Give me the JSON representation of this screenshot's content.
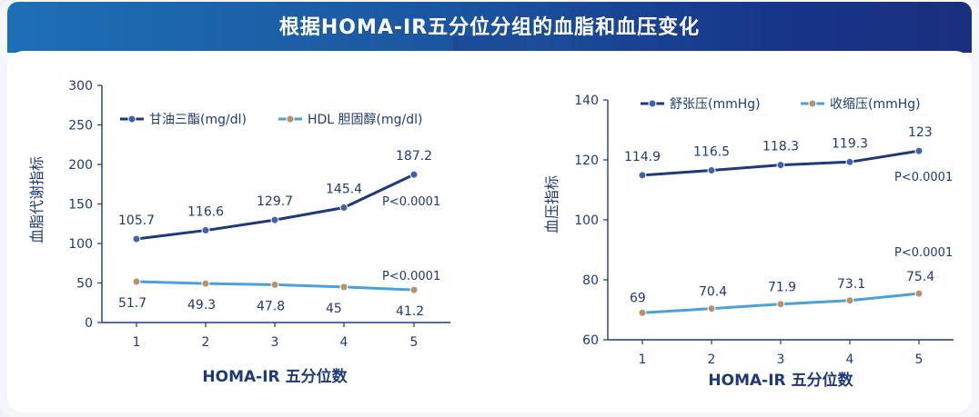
{
  "header": {
    "title": "根据HOMA-IR五分位分组的血脂和血压变化"
  },
  "chart_data": [
    {
      "type": "line",
      "xlabel": "HOMA-IR  五分位数",
      "ylabel": "血脂代谢指标",
      "x": [
        1,
        2,
        3,
        4,
        5
      ],
      "ylim": [
        0,
        300
      ],
      "yticks": [
        0,
        50,
        100,
        150,
        200,
        250,
        300
      ],
      "legend_position": "top-left",
      "series": [
        {
          "name": "甘油三酯(mg/dl)",
          "values": [
            105.7,
            116.6,
            129.7,
            145.4,
            187.2
          ],
          "labels": [
            "105.7",
            "116.6",
            "129.7",
            "145.4",
            "187.2"
          ],
          "color": "#1f3a7a",
          "marker_color": "#3f63a8"
        },
        {
          "name": "HDL 胆固醇(mg/dl)",
          "values": [
            51.7,
            49.3,
            47.8,
            45,
            41.2
          ],
          "labels": [
            "51.7",
            "49.3",
            "47.8",
            "45",
            "41.2"
          ],
          "color": "#4aa3d6",
          "marker_color": "#b8906a"
        }
      ],
      "annotations": [
        "P<0.0001",
        "P<0.0001"
      ]
    },
    {
      "type": "line",
      "xlabel": "HOMA-IR  五分位数",
      "ylabel": "血压指标",
      "x": [
        1,
        2,
        3,
        4,
        5
      ],
      "ylim": [
        60,
        140
      ],
      "yticks": [
        60,
        80,
        100,
        120,
        140
      ],
      "legend_position": "top-left",
      "series": [
        {
          "name": "舒张压(mmHg)",
          "values": [
            114.9,
            116.5,
            118.3,
            119.3,
            123
          ],
          "labels": [
            "114.9",
            "116.5",
            "118.3",
            "119.3",
            "123"
          ],
          "color": "#1f3a7a",
          "marker_color": "#3f63a8"
        },
        {
          "name": "收缩压(mmHg)",
          "values": [
            69,
            70.4,
            71.9,
            73.1,
            75.4
          ],
          "labels": [
            "69",
            "70.4",
            "71.9",
            "73.1",
            "75.4"
          ],
          "color": "#4aa3d6",
          "marker_color": "#b8906a"
        }
      ],
      "annotations": [
        "P<0.0001",
        "P<0.0001"
      ]
    }
  ]
}
